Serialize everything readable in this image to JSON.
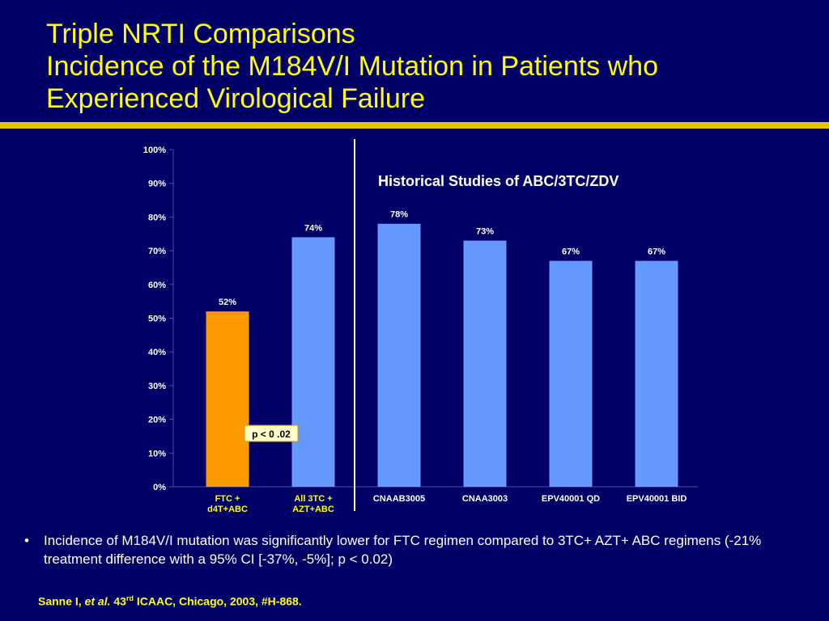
{
  "title": {
    "line1": "Triple NRTI Comparisons",
    "line2": "Incidence of the M184V/I Mutation in Patients who",
    "line3": "Experienced Virological Failure"
  },
  "colors": {
    "background": "#000066",
    "title": "#ffff00",
    "divider": "#e6c400",
    "bar_highlight": "#ff9900",
    "bar_default": "#6699ff"
  },
  "chart_data": {
    "type": "bar",
    "categories": [
      "FTC +\nd4T+ABC",
      "All 3TC +\nAZT+ABC",
      "CNAAB3005",
      "CNAA3003",
      "EPV40001 QD",
      "EPV40001 BID"
    ],
    "values": [
      52,
      74,
      78,
      73,
      67,
      67
    ],
    "value_labels": [
      "52%",
      "74%",
      "78%",
      "73%",
      "67%",
      "67%"
    ],
    "bar_colors": [
      "#ff9900",
      "#6699ff",
      "#6699ff",
      "#6699ff",
      "#6699ff",
      "#6699ff"
    ],
    "category_colors": [
      "#ffff00",
      "#ffff00",
      "#ffffff",
      "#ffffff",
      "#ffffff",
      "#ffffff"
    ],
    "yticks": [
      "0%",
      "10%",
      "20%",
      "30%",
      "40%",
      "50%",
      "60%",
      "70%",
      "80%",
      "90%",
      "100%"
    ],
    "ylim": [
      0,
      100
    ],
    "grid": false,
    "annotation": "Historical Studies of ABC/3TC/ZDV",
    "p_label": "p < 0 .02"
  },
  "bullet": {
    "symbol": "•",
    "text": "Incidence of M184V/I mutation was significantly lower for FTC regimen compared to 3TC+ AZT+ ABC regimens (-21% treatment difference with a 95% CI [-37%, -5%]; p < 0.02)"
  },
  "citation": {
    "author": "Sanne I, ",
    "etal": "et al.",
    "num": " 43",
    "sup": "rd",
    "rest": " ICAAC, Chicago, 2003, #H-868."
  }
}
